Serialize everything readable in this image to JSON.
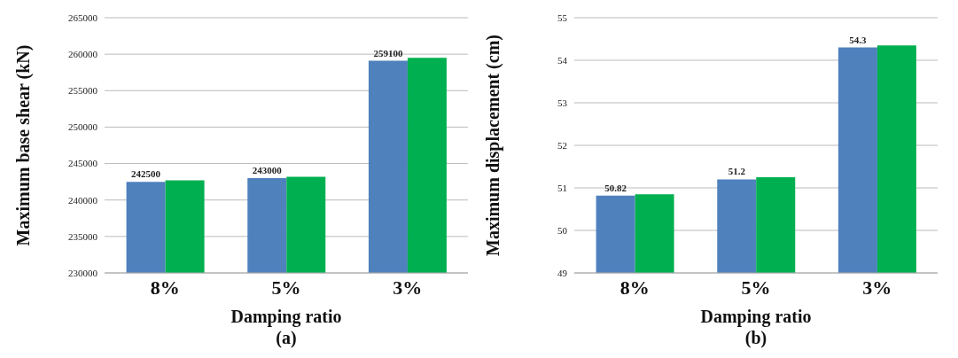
{
  "chart_data": [
    {
      "type": "bar",
      "xlabel": "Damping ratio",
      "ylabel": "Maximum base shear (kN)",
      "annotations": [
        "(a)"
      ],
      "categories": [
        "8%",
        "5%",
        "3%"
      ],
      "series": [
        {
          "color": "#4f81bd",
          "values": [
            242500,
            243000,
            259100
          ],
          "value_labels": [
            "242500",
            "243000",
            "259100"
          ]
        },
        {
          "color": "#00b050",
          "values": [
            242700,
            243200,
            259500
          ]
        }
      ],
      "ylim": [
        230000,
        265000
      ],
      "yticks": [
        230000,
        235000,
        240000,
        245000,
        250000,
        255000,
        260000,
        265000
      ],
      "grid": "y",
      "legend": false
    },
    {
      "type": "bar",
      "xlabel": "Damping ratio",
      "ylabel": "Maximum displacement (cm)",
      "annotations": [
        "(b)"
      ],
      "categories": [
        "8%",
        "5%",
        "3%"
      ],
      "series": [
        {
          "color": "#4f81bd",
          "values": [
            50.82,
            51.2,
            54.3
          ],
          "value_labels": [
            "50.82",
            "51.2",
            "54.3"
          ]
        },
        {
          "color": "#00b050",
          "values": [
            50.85,
            51.25,
            54.35
          ]
        }
      ],
      "ylim": [
        49,
        55
      ],
      "yticks": [
        49,
        50,
        51,
        52,
        53,
        54,
        55
      ],
      "grid": "y",
      "legend": false
    }
  ]
}
